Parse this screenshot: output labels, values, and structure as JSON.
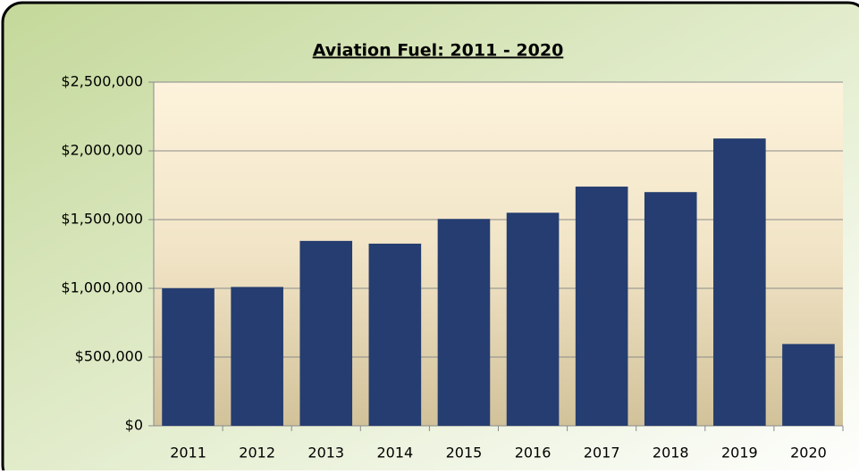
{
  "chart_data": {
    "type": "bar",
    "title": "Aviation Fuel: 2011 - 2020",
    "categories": [
      "2011",
      "2012",
      "2013",
      "2014",
      "2015",
      "2016",
      "2017",
      "2018",
      "2019",
      "2020"
    ],
    "values": [
      1000000,
      1010000,
      1345000,
      1325000,
      1505000,
      1550000,
      1740000,
      1700000,
      2090000,
      595000
    ],
    "color": "#253d70",
    "ylim": [
      0,
      2500000
    ],
    "yticks": [
      {
        "value": 0,
        "label": "$0"
      },
      {
        "value": 500000,
        "label": "$500,000"
      },
      {
        "value": 1000000,
        "label": "$1,000,000"
      },
      {
        "value": 1500000,
        "label": "$1,500,000"
      },
      {
        "value": 2000000,
        "label": "$2,000,000"
      },
      {
        "value": 2500000,
        "label": "$2,500,000"
      }
    ],
    "grid": true
  }
}
